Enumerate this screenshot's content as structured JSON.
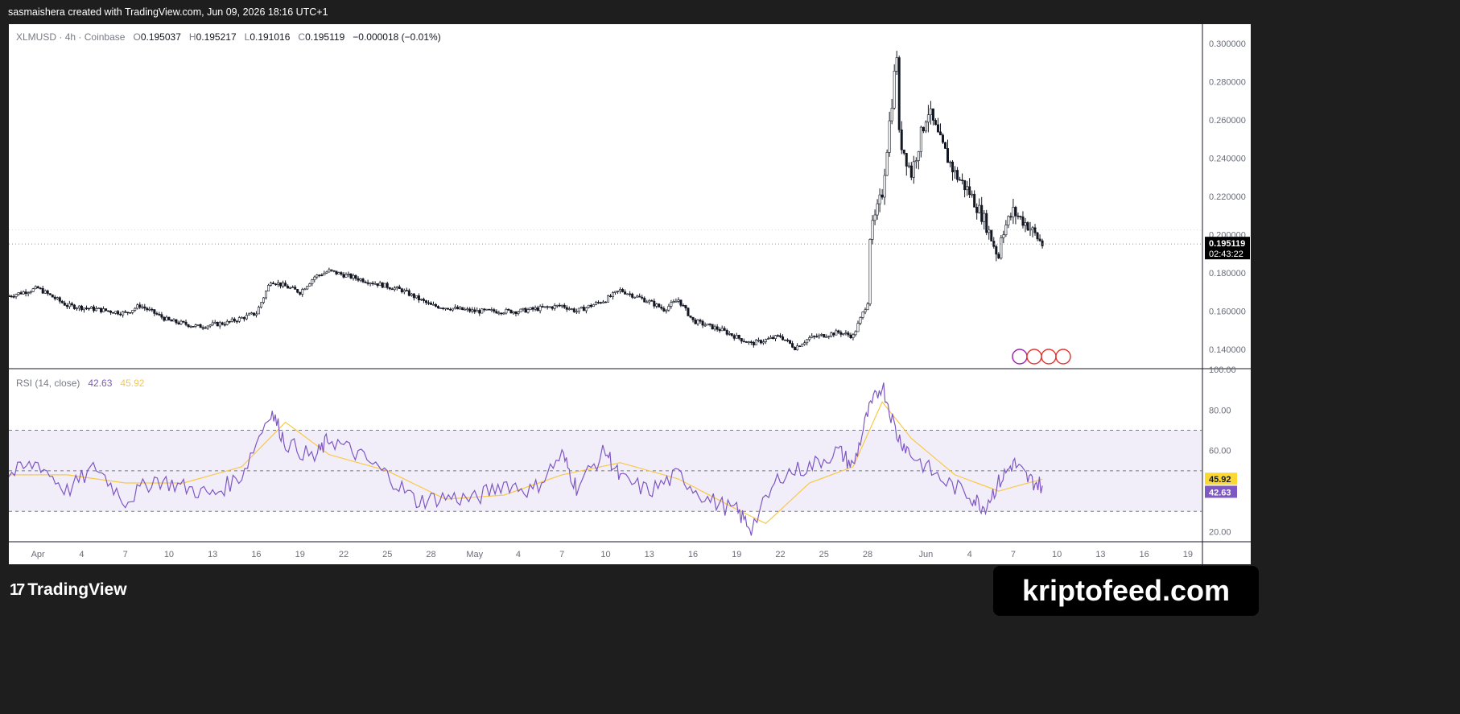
{
  "header": {
    "credit": "sasmaishera created with TradingView.com, Jun 09, 2026 18:16 UTC+1"
  },
  "legend": {
    "symbol": "XLMUSD",
    "interval": "4h",
    "exchange": "Coinbase",
    "o_label": "O",
    "o": "0.195037",
    "h_label": "H",
    "h": "0.195217",
    "l_label": "L",
    "l": "0.191016",
    "c_label": "C",
    "c": "0.195119",
    "change": "−0.000018 (−0.01%)"
  },
  "rsi_legend": {
    "name": "RSI (14, close)",
    "rsi": "42.63",
    "ma": "45.92"
  },
  "price_axis": {
    "ticks": [
      "0.300000",
      "0.280000",
      "0.260000",
      "0.240000",
      "0.220000",
      "0.200000",
      "0.180000",
      "0.160000",
      "0.140000"
    ],
    "last_price": "0.195119",
    "countdown": "02:43:22"
  },
  "rsi_axis": {
    "ticks": [
      "100.00",
      "80.00",
      "60.00",
      "20.00"
    ],
    "rsi_badge": "42.63",
    "ma_badge": "45.92"
  },
  "time_axis": [
    "Apr",
    "4",
    "7",
    "10",
    "13",
    "16",
    "19",
    "22",
    "25",
    "28",
    "May",
    "4",
    "7",
    "10",
    "13",
    "16",
    "19",
    "22",
    "25",
    "28",
    "Jun",
    "4",
    "7",
    "10",
    "13",
    "16",
    "19"
  ],
  "footer": {
    "logo_text": "TradingView",
    "logo_mark": "17",
    "brand": "kriptofeed.com"
  },
  "colors": {
    "candle": "#131722",
    "rsi_line": "#7e57c2",
    "rsi_ma": "#f7c948",
    "rsi_band": "#7e57c2",
    "ma_badge_bg": "#fdd835",
    "rsi_badge_bg": "#7e57c2"
  },
  "chart_data": [
    {
      "type": "candlestick",
      "title": "XLMUSD · 4h · Coinbase",
      "ylim": [
        0.13,
        0.31
      ],
      "x_range_dates": [
        "2026-03-30",
        "2026-06-20"
      ],
      "last_date": "2026-06-09",
      "overall_path_date_close": [
        [
          "2026-03-30",
          0.168
        ],
        [
          "2026-04-01",
          0.172
        ],
        [
          "2026-04-03",
          0.163
        ],
        [
          "2026-04-07",
          0.159
        ],
        [
          "2026-04-08",
          0.163
        ],
        [
          "2026-04-10",
          0.155
        ],
        [
          "2026-04-12",
          0.152
        ],
        [
          "2026-04-14",
          0.154
        ],
        [
          "2026-04-16",
          0.159
        ],
        [
          "2026-04-17",
          0.176
        ],
        [
          "2026-04-19",
          0.17
        ],
        [
          "2026-04-20",
          0.178
        ],
        [
          "2026-04-21",
          0.181
        ],
        [
          "2026-04-23",
          0.177
        ],
        [
          "2026-04-26",
          0.171
        ],
        [
          "2026-04-28",
          0.163
        ],
        [
          "2026-05-01",
          0.16
        ],
        [
          "2026-05-04",
          0.16
        ],
        [
          "2026-05-07",
          0.163
        ],
        [
          "2026-05-08",
          0.16
        ],
        [
          "2026-05-10",
          0.166
        ],
        [
          "2026-05-11",
          0.171
        ],
        [
          "2026-05-13",
          0.165
        ],
        [
          "2026-05-14",
          0.161
        ],
        [
          "2026-05-15",
          0.166
        ],
        [
          "2026-05-16",
          0.155
        ],
        [
          "2026-05-18",
          0.15
        ],
        [
          "2026-05-20",
          0.143
        ],
        [
          "2026-05-22",
          0.147
        ],
        [
          "2026-05-23",
          0.141
        ],
        [
          "2026-05-24",
          0.146
        ],
        [
          "2026-05-26",
          0.149
        ],
        [
          "2026-05-27",
          0.147
        ],
        [
          "2026-05-28",
          0.165
        ],
        [
          "2026-05-28",
          0.195
        ],
        [
          "2026-05-29",
          0.222
        ],
        [
          "2026-05-30",
          0.295
        ],
        [
          "2026-05-30",
          0.255
        ],
        [
          "2026-05-31",
          0.232
        ],
        [
          "2026-06-01",
          0.262
        ],
        [
          "2026-06-01",
          0.268
        ],
        [
          "2026-06-02",
          0.248
        ],
        [
          "2026-06-03",
          0.232
        ],
        [
          "2026-06-04",
          0.222
        ],
        [
          "2026-06-05",
          0.208
        ],
        [
          "2026-06-06",
          0.188
        ],
        [
          "2026-06-06",
          0.198
        ],
        [
          "2026-06-07",
          0.212
        ],
        [
          "2026-06-08",
          0.205
        ],
        [
          "2026-06-09",
          0.195
        ]
      ],
      "last_close": 0.195119
    },
    {
      "type": "line",
      "title": "RSI (14, close)",
      "ylim": [
        15,
        100
      ],
      "bands": {
        "upper": 70,
        "middle": 50,
        "lower": 30
      },
      "series": [
        {
          "name": "RSI",
          "x": [
            "2026-03-30",
            "2026-04-01",
            "2026-04-03",
            "2026-04-05",
            "2026-04-07",
            "2026-04-09",
            "2026-04-11",
            "2026-04-13",
            "2026-04-15",
            "2026-04-17",
            "2026-04-18",
            "2026-04-20",
            "2026-04-21",
            "2026-04-23",
            "2026-04-25",
            "2026-04-27",
            "2026-04-29",
            "2026-05-01",
            "2026-05-03",
            "2026-05-05",
            "2026-05-07",
            "2026-05-08",
            "2026-05-10",
            "2026-05-11",
            "2026-05-13",
            "2026-05-15",
            "2026-05-17",
            "2026-05-19",
            "2026-05-20",
            "2026-05-22",
            "2026-05-24",
            "2026-05-26",
            "2026-05-27",
            "2026-05-28",
            "2026-05-29",
            "2026-05-30",
            "2026-05-31",
            "2026-06-02",
            "2026-06-04",
            "2026-06-05",
            "2026-06-06",
            "2026-06-07",
            "2026-06-08",
            "2026-06-09"
          ],
          "values": [
            48,
            54,
            40,
            52,
            35,
            46,
            42,
            38,
            48,
            80,
            64,
            56,
            66,
            58,
            48,
            35,
            37,
            36,
            44,
            40,
            58,
            42,
            60,
            46,
            40,
            48,
            36,
            30,
            22,
            48,
            52,
            60,
            52,
            78,
            93,
            68,
            58,
            46,
            38,
            32,
            44,
            54,
            46,
            42.63
          ]
        },
        {
          "name": "RSI-based MA",
          "x": [
            "2026-03-30",
            "2026-04-03",
            "2026-04-07",
            "2026-04-11",
            "2026-04-15",
            "2026-04-18",
            "2026-04-21",
            "2026-04-25",
            "2026-04-29",
            "2026-05-03",
            "2026-05-07",
            "2026-05-11",
            "2026-05-15",
            "2026-05-19",
            "2026-05-21",
            "2026-05-24",
            "2026-05-27",
            "2026-05-29",
            "2026-05-31",
            "2026-06-03",
            "2026-06-06",
            "2026-06-09"
          ],
          "values": [
            48,
            48,
            44,
            44,
            52,
            74,
            58,
            50,
            36,
            38,
            48,
            54,
            46,
            31,
            24,
            44,
            52,
            84,
            66,
            48,
            40,
            45.92
          ]
        }
      ],
      "last_values": {
        "RSI": 42.63,
        "MA": 45.92
      }
    }
  ]
}
